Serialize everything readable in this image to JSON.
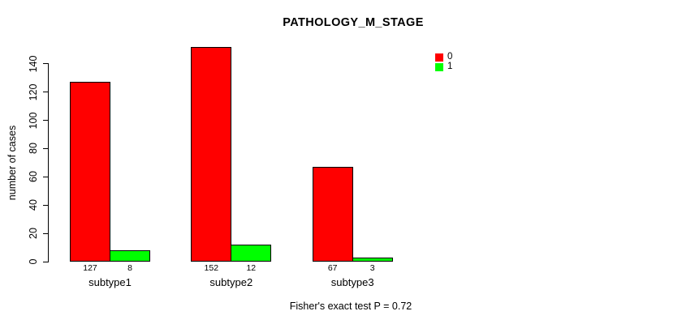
{
  "title": "PATHOLOGY_M_STAGE",
  "footnote": "Fisher's exact test P = 0.72",
  "chart_data": {
    "type": "bar",
    "title": "PATHOLOGY_M_STAGE",
    "xlabel": "",
    "ylabel": "number of cases",
    "categories": [
      "subtype1",
      "subtype2",
      "subtype3"
    ],
    "series": [
      {
        "name": "0",
        "color": "#ff0000",
        "values": [
          127,
          152,
          67
        ]
      },
      {
        "name": "1",
        "color": "#00ff00",
        "values": [
          8,
          12,
          3
        ]
      }
    ],
    "yticks": [
      0,
      20,
      40,
      60,
      80,
      100,
      120,
      140
    ],
    "ylim": [
      0,
      152
    ],
    "grid": false,
    "bar_value_labels_shown": true,
    "legend_position": "top-right",
    "annotation": "Fisher's exact test P = 0.72"
  }
}
